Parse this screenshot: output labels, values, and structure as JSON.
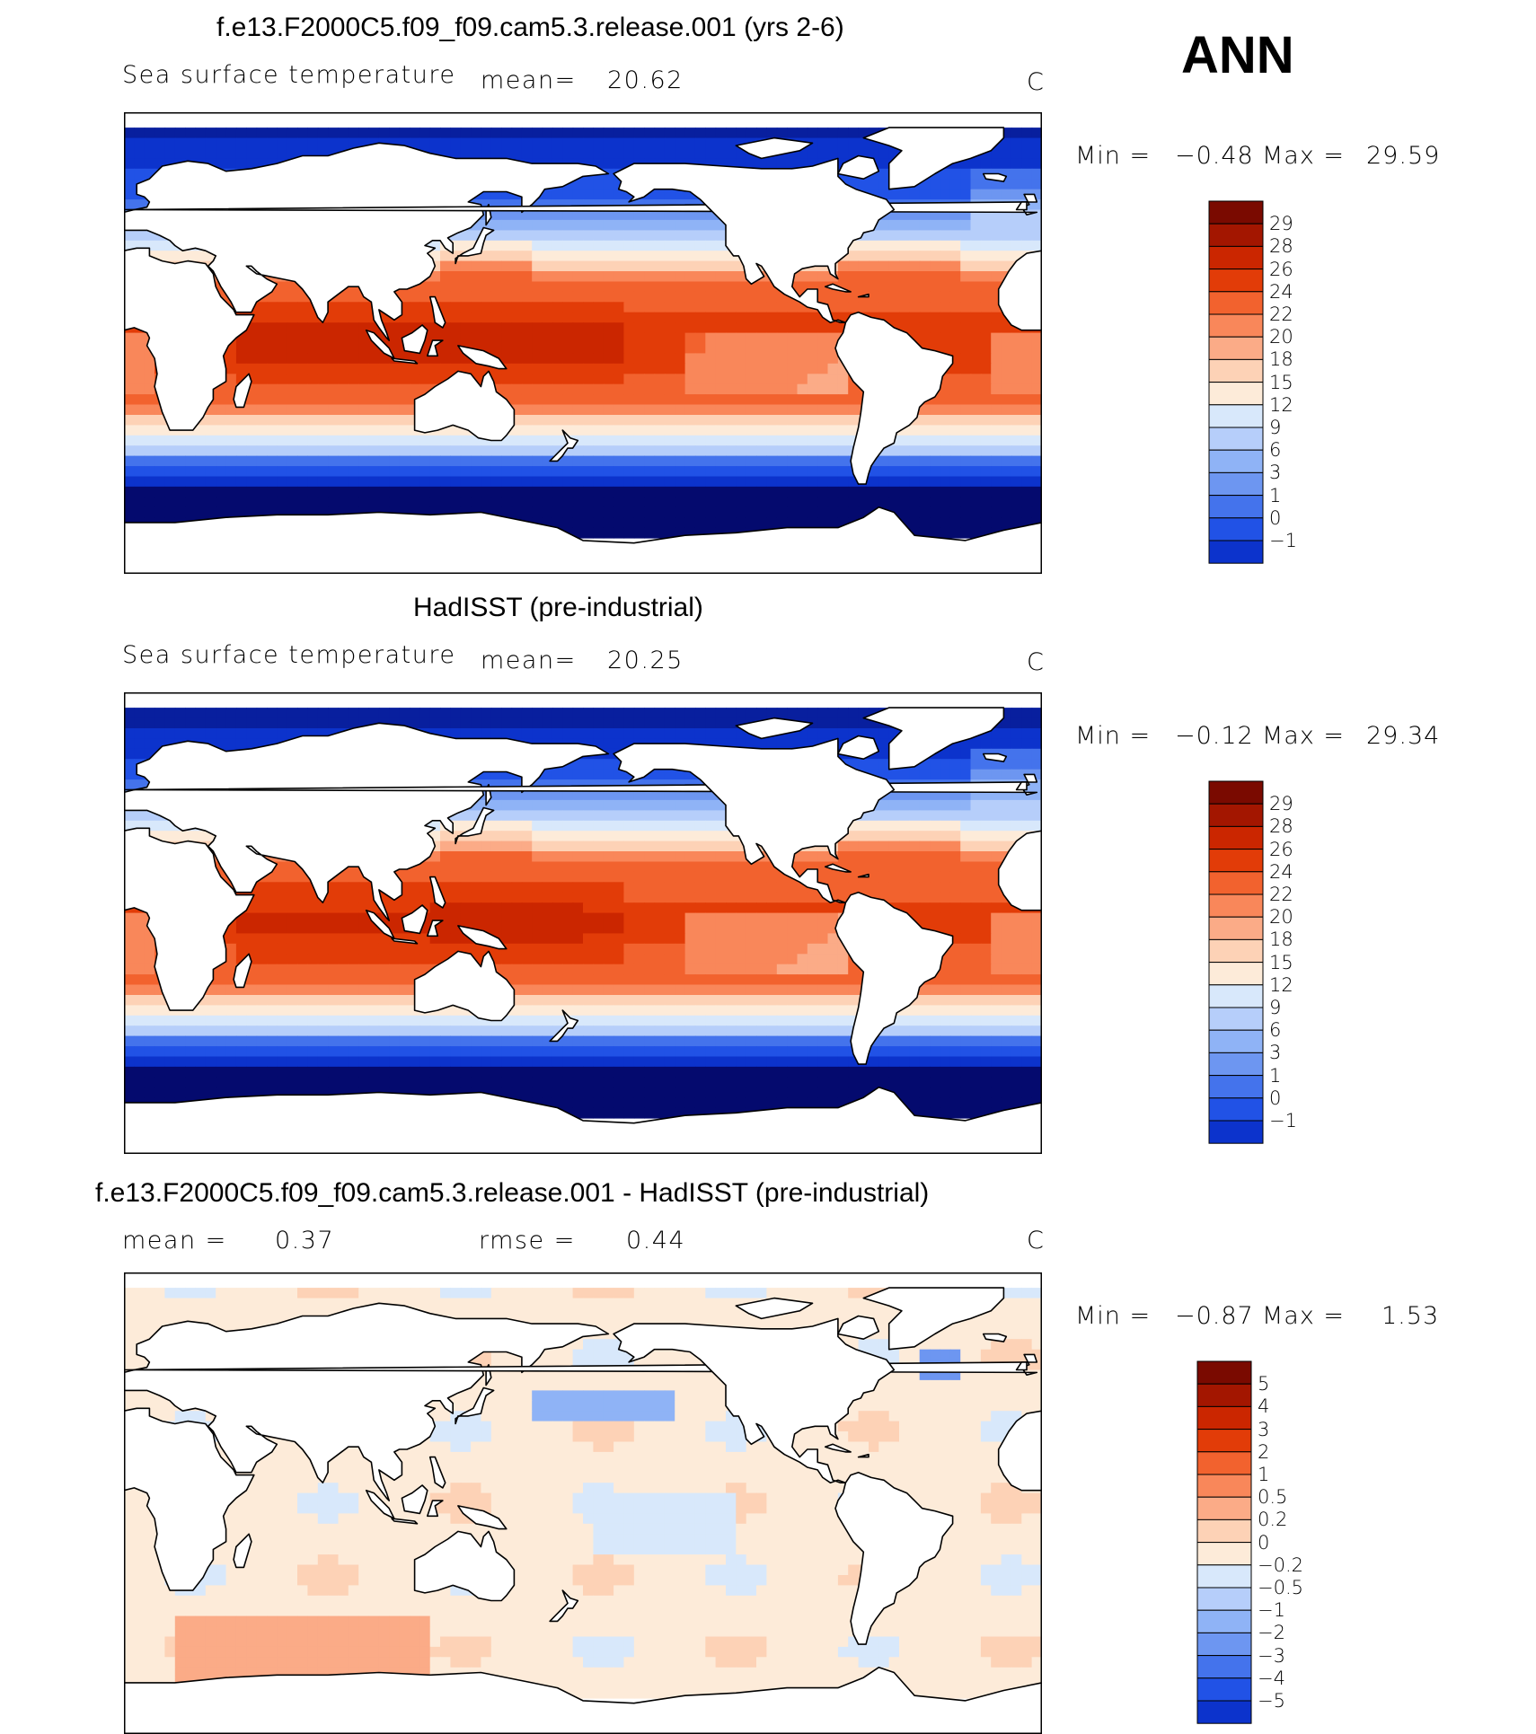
{
  "season": "ANN",
  "panels": [
    {
      "title": "f.e13.F2000C5.f09_f09.cam5.3.release.001 (yrs 2-6)",
      "variable": "Sea surface temperature",
      "mean_label": "mean=",
      "mean_value": "20.62",
      "units": "C",
      "min_label": "Min =",
      "min_value": "−0.48",
      "max_label": "Max =",
      "max_value": "29.59",
      "colorbar": "sst"
    },
    {
      "title": "HadISST (pre-industrial)",
      "variable": "Sea surface temperature",
      "mean_label": "mean=",
      "mean_value": "20.25",
      "units": "C",
      "min_label": "Min =",
      "min_value": "−0.12",
      "max_label": "Max =",
      "max_value": "29.34",
      "colorbar": "sst"
    },
    {
      "title": "f.e13.F2000C5.f09_f09.cam5.3.release.001 - HadISST (pre-industrial)",
      "mean_label": "mean =",
      "mean_value": "0.37",
      "rmse_label": "rmse =",
      "rmse_value": "0.44",
      "units": "C",
      "min_label": "Min =",
      "min_value": "−0.87",
      "max_label": "Max =",
      "max_value": "1.53",
      "colorbar": "diff"
    }
  ],
  "chart_data": [
    {
      "type": "heatmap",
      "title": "f.e13.F2000C5.f09_f09.cam5.3.release.001 (yrs 2-6)",
      "variable": "Sea surface temperature",
      "units": "C",
      "mean": 20.62,
      "min": -0.48,
      "max": 29.59,
      "colorbar_levels": [
        "29",
        "28",
        "26",
        "24",
        "22",
        "20",
        "18",
        "15",
        "12",
        "9",
        "6",
        "3",
        "1",
        "0",
        "−1"
      ],
      "colorbar_colors": [
        "#7a0a00",
        "#a31600",
        "#cb2600",
        "#e23c08",
        "#f2622e",
        "#f9875a",
        "#fbab87",
        "#fdd2b6",
        "#fdebd9",
        "#d8e8fb",
        "#b6cefa",
        "#8fb3f6",
        "#6d96f1",
        "#4473ec",
        "#2152e6",
        "#0c33cc",
        "#081f9e",
        "#040a6e"
      ]
    },
    {
      "type": "heatmap",
      "title": "HadISST (pre-industrial)",
      "variable": "Sea surface temperature",
      "units": "C",
      "mean": 20.25,
      "min": -0.12,
      "max": 29.34,
      "colorbar_levels": [
        "29",
        "28",
        "26",
        "24",
        "22",
        "20",
        "18",
        "15",
        "12",
        "9",
        "6",
        "3",
        "1",
        "0",
        "−1"
      ]
    },
    {
      "type": "heatmap",
      "title": "f.e13.F2000C5.f09_f09.cam5.3.release.001 - HadISST (pre-industrial)",
      "units": "C",
      "mean": 0.37,
      "rmse": 0.44,
      "min": -0.87,
      "max": 1.53,
      "colorbar_levels": [
        "5",
        "4",
        "3",
        "2",
        "1",
        "0.5",
        "0.2",
        "0",
        "−0.2",
        "−0.5",
        "−1",
        "−2",
        "−3",
        "−4",
        "−5"
      ],
      "colorbar_colors": [
        "#7a0a00",
        "#a31600",
        "#cb2600",
        "#e23c08",
        "#f2622e",
        "#f9875a",
        "#fbab87",
        "#fdd2b6",
        "#fdebd9",
        "#d8e8fb",
        "#b6cefa",
        "#8fb3f6",
        "#6d96f1",
        "#4473ec",
        "#2152e6",
        "#0c33cc",
        "#081f9e",
        "#040a6e"
      ]
    }
  ]
}
